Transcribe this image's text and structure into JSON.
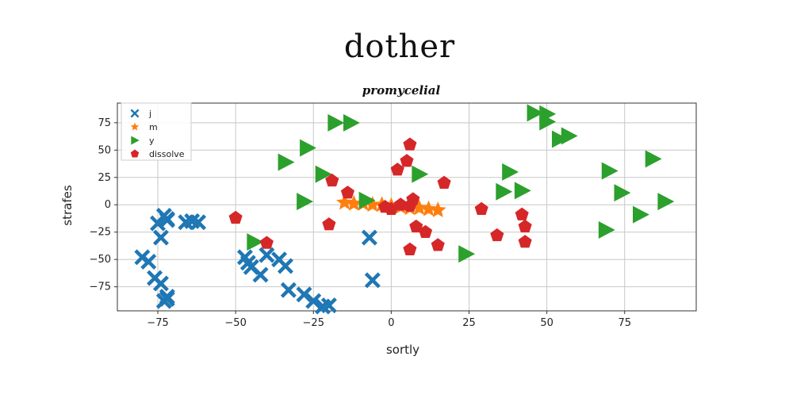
{
  "chart_data": {
    "type": "scatter",
    "suptitle": "dother",
    "title": "promycelial",
    "xlabel": "sortly",
    "ylabel": "strafes",
    "xlim": [
      -88,
      98
    ],
    "ylim": [
      -97,
      93
    ],
    "xticks": [
      -75,
      -50,
      -25,
      0,
      25,
      50,
      75
    ],
    "yticks": [
      75,
      50,
      25,
      0,
      -25,
      -50,
      -75
    ],
    "grid": true,
    "legend_position": "upper-left",
    "series": [
      {
        "name": "j",
        "marker": "X",
        "color": "#1f77b4",
        "x": [
          -73,
          -72,
          -75,
          -74,
          -72,
          -66,
          -64,
          -62,
          -80,
          -78,
          -76,
          -74,
          -72,
          -73,
          -72,
          -47,
          -46,
          -45,
          -42,
          -40,
          -36,
          -34,
          -33,
          -28,
          -25,
          -22,
          -20,
          -7,
          -6
        ],
        "y": [
          -10,
          -14,
          -17,
          -30,
          -13,
          -16,
          -15,
          -16,
          -48,
          -52,
          -67,
          -72,
          -84,
          -88,
          -86,
          -48,
          -53,
          -57,
          -64,
          -46,
          -50,
          -56,
          -78,
          -82,
          -88,
          -93,
          -92,
          -30,
          -69
        ]
      },
      {
        "name": "m",
        "marker": "*",
        "color": "#ff7f0e",
        "x": [
          -15,
          -12,
          -9,
          -6,
          -3,
          0,
          3,
          6,
          9,
          12,
          15
        ],
        "y": [
          2,
          1,
          1,
          0,
          0,
          -1,
          -2,
          -3,
          -3,
          -4,
          -5
        ]
      },
      {
        "name": "y",
        "marker": ">",
        "color": "#2ca02c",
        "x": [
          -18,
          -13,
          -27,
          -34,
          -22,
          -28,
          -8,
          9,
          38,
          36,
          42,
          46,
          50,
          50,
          54,
          57,
          70,
          74,
          80,
          84,
          88,
          69,
          24,
          -44
        ],
        "y": [
          75,
          75,
          52,
          39,
          28,
          3,
          4,
          28,
          30,
          12,
          13,
          84,
          83,
          76,
          60,
          63,
          31,
          11,
          -9,
          42,
          3,
          -23,
          -45,
          -34
        ],
        "note": ""
      },
      {
        "name": "dissolve",
        "marker": "p",
        "color": "#d62728",
        "x": [
          -50,
          -40,
          -20,
          -14,
          -19,
          2,
          5,
          6,
          6,
          8,
          11,
          15,
          17,
          29,
          34,
          42,
          43,
          43,
          7,
          0,
          -2,
          3,
          6
        ],
        "y": [
          -12,
          -35,
          -18,
          11,
          22,
          32,
          40,
          55,
          -41,
          -20,
          -25,
          -37,
          20,
          -4,
          -28,
          -9,
          -20,
          -34,
          5,
          -4,
          -2,
          0,
          -1
        ]
      }
    ]
  }
}
